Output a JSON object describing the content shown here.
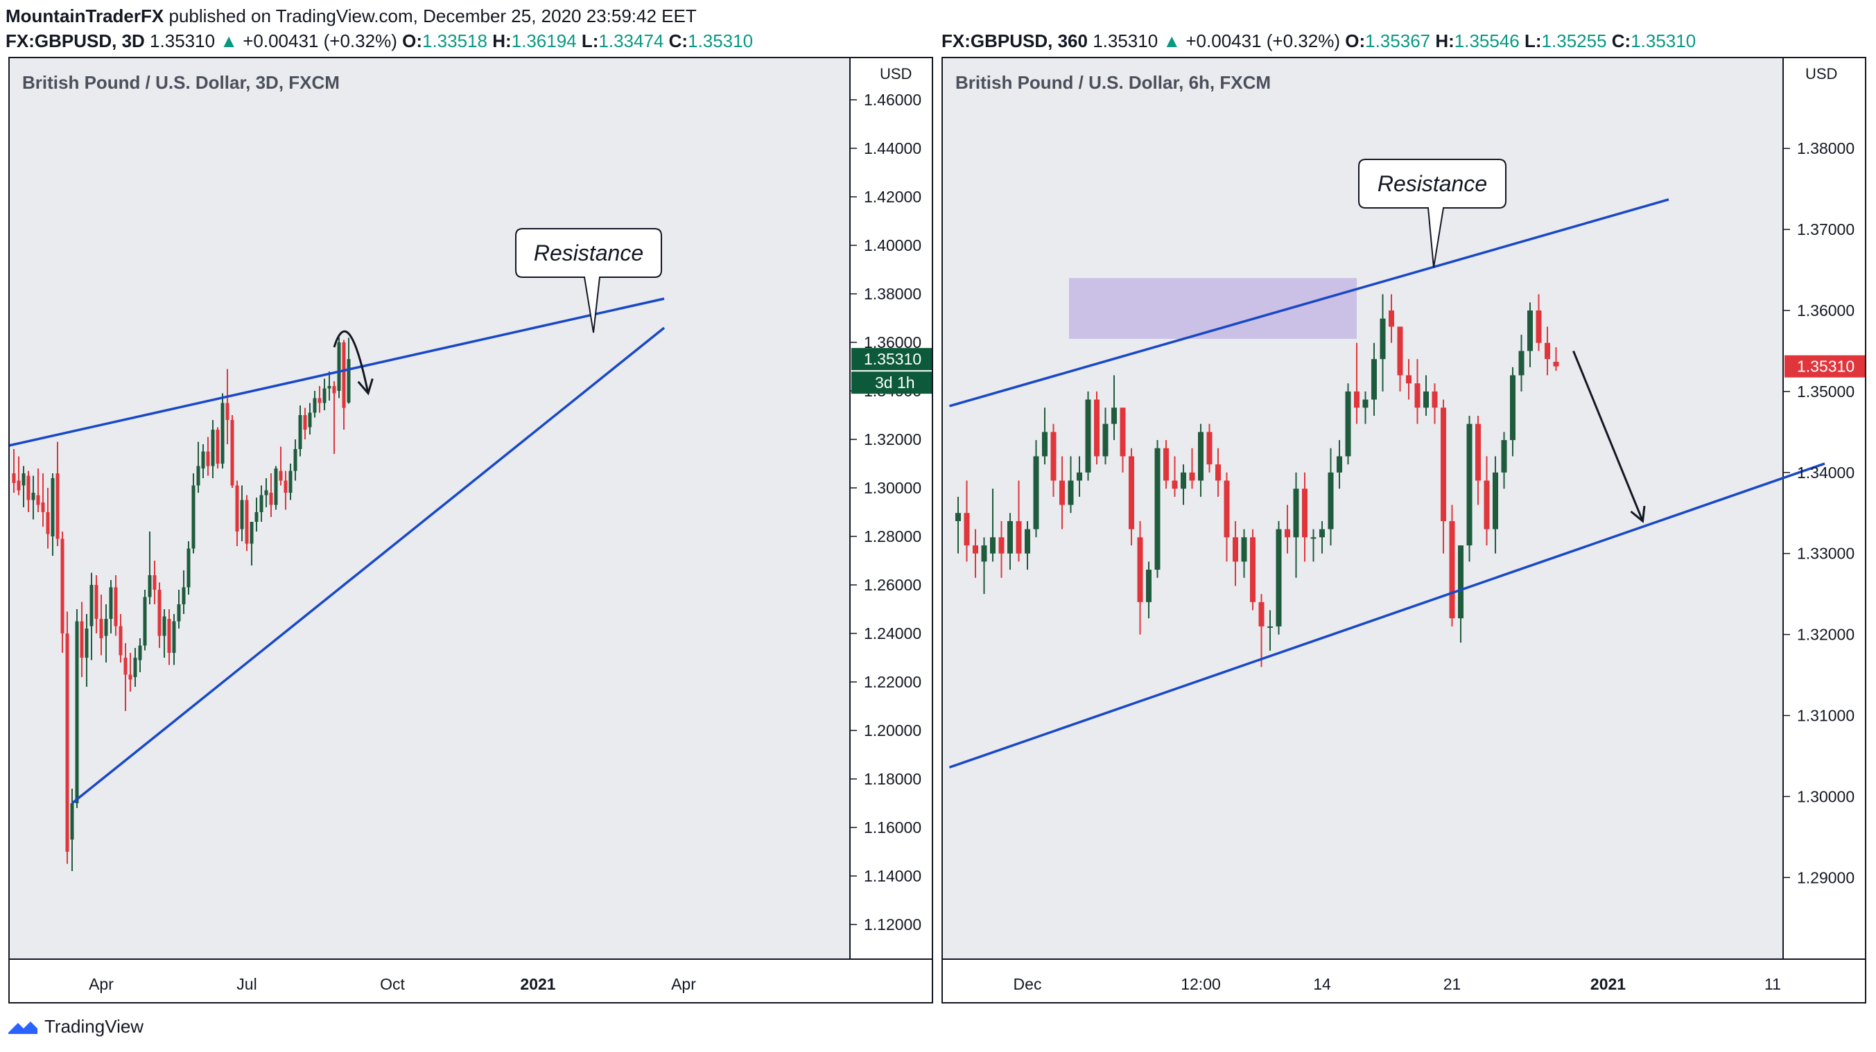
{
  "header": {
    "publisher": "MountainTraderFX",
    "published_text": "published on TradingView.com, December 25, 2020 23:59:42 EET"
  },
  "left_legend": {
    "symbol": "FX:GBPUSD, 3D",
    "price": "1.35310",
    "change": "+0.00431 (+0.32%)",
    "o_label": "O:",
    "o": "1.33518",
    "h_label": "H:",
    "h": "1.36194",
    "l_label": "L:",
    "l": "1.33474",
    "c_label": "C:",
    "c": "1.35310"
  },
  "right_legend": {
    "symbol": "FX:GBPUSD, 360",
    "price": "1.35310",
    "change": "+0.00431 (+0.32%)",
    "o_label": "O:",
    "o": "1.35367",
    "h_label": "H:",
    "h": "1.35546",
    "l_label": "L:",
    "l": "1.35255",
    "c_label": "C:",
    "c": "1.35310"
  },
  "footer": {
    "brand": "TradingView"
  },
  "colors": {
    "up": "#089981",
    "down": "#f23645",
    "bull_candle": "#1f5b3d",
    "bear_candle": "#e0353b",
    "trendline": "#1848c8",
    "zone": "#c5b8e4",
    "price_tag_left": "#0d5a3a",
    "price_tag_right": "#e0353b"
  },
  "chart_data": [
    {
      "type": "candlestick",
      "title": "British Pound / U.S. Dollar, 3D, FXCM",
      "currency": "USD",
      "y_ticks": [
        "1.46000",
        "1.44000",
        "1.42000",
        "1.40000",
        "1.38000",
        "1.36000",
        "1.34000",
        "1.32000",
        "1.30000",
        "1.28000",
        "1.26000",
        "1.24000",
        "1.22000",
        "1.20000",
        "1.18000",
        "1.16000",
        "1.14000",
        "1.12000"
      ],
      "ylim": [
        1.11,
        1.47
      ],
      "x_ticks": [
        "Apr",
        "Jul",
        "Oct",
        "2021",
        "Apr"
      ],
      "x_tick_index": [
        18,
        48,
        78,
        108,
        138
      ],
      "last_price": "1.35310",
      "countdown": "3d 1h",
      "annotation": "Resistance",
      "candles": [
        [
          1.306,
          1.316,
          1.298,
          1.302
        ],
        [
          1.303,
          1.313,
          1.297,
          1.299
        ],
        [
          1.301,
          1.309,
          1.292,
          1.306
        ],
        [
          1.305,
          1.307,
          1.29,
          1.295
        ],
        [
          1.295,
          1.305,
          1.287,
          1.298
        ],
        [
          1.297,
          1.308,
          1.29,
          1.293
        ],
        [
          1.294,
          1.306,
          1.284,
          1.29
        ],
        [
          1.29,
          1.3,
          1.275,
          1.281
        ],
        [
          1.28,
          1.306,
          1.272,
          1.304
        ],
        [
          1.306,
          1.319,
          1.276,
          1.279
        ],
        [
          1.279,
          1.282,
          1.232,
          1.24
        ],
        [
          1.24,
          1.249,
          1.145,
          1.15
        ],
        [
          1.155,
          1.176,
          1.142,
          1.17
        ],
        [
          1.17,
          1.25,
          1.168,
          1.245
        ],
        [
          1.245,
          1.253,
          1.222,
          1.23
        ],
        [
          1.23,
          1.248,
          1.218,
          1.242
        ],
        [
          1.243,
          1.265,
          1.229,
          1.26
        ],
        [
          1.26,
          1.264,
          1.24,
          1.246
        ],
        [
          1.246,
          1.256,
          1.231,
          1.238
        ],
        [
          1.239,
          1.252,
          1.228,
          1.246
        ],
        [
          1.246,
          1.262,
          1.24,
          1.259
        ],
        [
          1.259,
          1.264,
          1.239,
          1.243
        ],
        [
          1.243,
          1.248,
          1.228,
          1.231
        ],
        [
          1.23,
          1.236,
          1.208,
          1.223
        ],
        [
          1.223,
          1.232,
          1.216,
          1.221
        ],
        [
          1.222,
          1.234,
          1.218,
          1.23
        ],
        [
          1.229,
          1.238,
          1.224,
          1.235
        ],
        [
          1.235,
          1.258,
          1.233,
          1.255
        ],
        [
          1.255,
          1.282,
          1.252,
          1.264
        ],
        [
          1.264,
          1.27,
          1.252,
          1.258
        ],
        [
          1.258,
          1.261,
          1.234,
          1.239
        ],
        [
          1.239,
          1.25,
          1.23,
          1.247
        ],
        [
          1.246,
          1.25,
          1.227,
          1.232
        ],
        [
          1.232,
          1.248,
          1.227,
          1.245
        ],
        [
          1.245,
          1.258,
          1.242,
          1.252
        ],
        [
          1.252,
          1.266,
          1.248,
          1.259
        ],
        [
          1.259,
          1.278,
          1.256,
          1.275
        ],
        [
          1.275,
          1.306,
          1.273,
          1.301
        ],
        [
          1.301,
          1.319,
          1.298,
          1.309
        ],
        [
          1.308,
          1.318,
          1.304,
          1.315
        ],
        [
          1.315,
          1.321,
          1.305,
          1.309
        ],
        [
          1.309,
          1.328,
          1.304,
          1.324
        ],
        [
          1.324,
          1.325,
          1.308,
          1.31
        ],
        [
          1.31,
          1.339,
          1.308,
          1.335
        ],
        [
          1.335,
          1.349,
          1.318,
          1.328
        ],
        [
          1.328,
          1.33,
          1.3,
          1.301
        ],
        [
          1.301,
          1.303,
          1.276,
          1.282
        ],
        [
          1.283,
          1.301,
          1.278,
          1.295
        ],
        [
          1.295,
          1.297,
          1.274,
          1.277
        ],
        [
          1.277,
          1.285,
          1.268,
          1.286
        ],
        [
          1.286,
          1.296,
          1.282,
          1.29
        ],
        [
          1.29,
          1.301,
          1.286,
          1.297
        ],
        [
          1.297,
          1.304,
          1.292,
          1.299
        ],
        [
          1.298,
          1.306,
          1.288,
          1.293
        ],
        [
          1.293,
          1.309,
          1.291,
          1.308
        ],
        [
          1.307,
          1.317,
          1.301,
          1.303
        ],
        [
          1.303,
          1.307,
          1.291,
          1.298
        ],
        [
          1.298,
          1.31,
          1.295,
          1.307
        ],
        [
          1.307,
          1.32,
          1.303,
          1.316
        ],
        [
          1.316,
          1.334,
          1.313,
          1.33
        ],
        [
          1.33,
          1.333,
          1.32,
          1.324
        ],
        [
          1.325,
          1.335,
          1.322,
          1.331
        ],
        [
          1.331,
          1.34,
          1.329,
          1.337
        ],
        [
          1.337,
          1.342,
          1.331,
          1.335
        ],
        [
          1.335,
          1.345,
          1.332,
          1.341
        ],
        [
          1.341,
          1.348,
          1.336,
          1.342
        ],
        [
          1.342,
          1.344,
          1.314,
          1.339
        ],
        [
          1.34,
          1.362,
          1.337,
          1.36
        ],
        [
          1.36,
          1.361,
          1.324,
          1.333
        ],
        [
          1.3352,
          1.3619,
          1.3347,
          1.3531
        ]
      ],
      "trendlines": [
        {
          "name": "resistance",
          "from": [
            -2,
            1.317
          ],
          "to": [
            134,
            1.378
          ]
        },
        {
          "name": "support",
          "from": [
            12,
            1.17
          ],
          "to": [
            134,
            1.366
          ]
        }
      ],
      "arrow": {
        "from": [
          66,
          1.358
        ],
        "peak": [
          69,
          1.366
        ],
        "to": [
          73,
          1.339
        ]
      }
    },
    {
      "type": "candlestick",
      "title": "British Pound / U.S. Dollar, 6h, FXCM",
      "currency": "USD",
      "y_ticks": [
        "1.38000",
        "1.37000",
        "1.36000",
        "1.35000",
        "1.34000",
        "1.33000",
        "1.32000",
        "1.31000",
        "1.30000",
        "1.29000"
      ],
      "ylim": [
        1.2795,
        1.389
      ],
      "x_ticks": [
        "Dec",
        "12:00",
        "14",
        "21",
        "2021",
        "11"
      ],
      "x_tick_index": [
        8,
        28,
        42,
        57,
        75,
        94
      ],
      "last_price": "1.35310",
      "annotation": "Resistance",
      "resistance_zone": [
        1.3565,
        1.364
      ],
      "candles": [
        [
          1.334,
          1.337,
          1.33,
          1.335
        ],
        [
          1.335,
          1.339,
          1.329,
          1.331
        ],
        [
          1.331,
          1.333,
          1.327,
          1.33
        ],
        [
          1.329,
          1.332,
          1.325,
          1.331
        ],
        [
          1.33,
          1.338,
          1.329,
          1.332
        ],
        [
          1.332,
          1.334,
          1.327,
          1.33
        ],
        [
          1.33,
          1.335,
          1.328,
          1.334
        ],
        [
          1.334,
          1.339,
          1.329,
          1.33
        ],
        [
          1.33,
          1.334,
          1.328,
          1.333
        ],
        [
          1.333,
          1.344,
          1.332,
          1.342
        ],
        [
          1.342,
          1.348,
          1.341,
          1.345
        ],
        [
          1.345,
          1.346,
          1.337,
          1.339
        ],
        [
          1.339,
          1.342,
          1.333,
          1.336
        ],
        [
          1.336,
          1.342,
          1.335,
          1.339
        ],
        [
          1.339,
          1.342,
          1.337,
          1.34
        ],
        [
          1.34,
          1.35,
          1.339,
          1.349
        ],
        [
          1.349,
          1.35,
          1.341,
          1.342
        ],
        [
          1.342,
          1.348,
          1.341,
          1.346
        ],
        [
          1.346,
          1.352,
          1.344,
          1.348
        ],
        [
          1.348,
          1.348,
          1.34,
          1.342
        ],
        [
          1.342,
          1.343,
          1.331,
          1.333
        ],
        [
          1.332,
          1.334,
          1.32,
          1.324
        ],
        [
          1.324,
          1.329,
          1.322,
          1.328
        ],
        [
          1.328,
          1.344,
          1.327,
          1.343
        ],
        [
          1.343,
          1.344,
          1.338,
          1.339
        ],
        [
          1.339,
          1.342,
          1.337,
          1.338
        ],
        [
          1.338,
          1.341,
          1.336,
          1.34
        ],
        [
          1.34,
          1.343,
          1.338,
          1.339
        ],
        [
          1.339,
          1.346,
          1.337,
          1.345
        ],
        [
          1.345,
          1.346,
          1.34,
          1.341
        ],
        [
          1.341,
          1.343,
          1.337,
          1.339
        ],
        [
          1.339,
          1.34,
          1.329,
          1.332
        ],
        [
          1.332,
          1.334,
          1.326,
          1.329
        ],
        [
          1.329,
          1.333,
          1.327,
          1.332
        ],
        [
          1.332,
          1.333,
          1.323,
          1.324
        ],
        [
          1.324,
          1.325,
          1.316,
          1.321
        ],
        [
          1.321,
          1.323,
          1.318,
          1.321
        ],
        [
          1.321,
          1.334,
          1.32,
          1.333
        ],
        [
          1.333,
          1.336,
          1.33,
          1.332
        ],
        [
          1.332,
          1.34,
          1.327,
          1.338
        ],
        [
          1.338,
          1.34,
          1.329,
          1.332
        ],
        [
          1.332,
          1.333,
          1.329,
          1.332
        ],
        [
          1.332,
          1.334,
          1.33,
          1.333
        ],
        [
          1.333,
          1.343,
          1.331,
          1.34
        ],
        [
          1.34,
          1.344,
          1.338,
          1.342
        ],
        [
          1.342,
          1.351,
          1.341,
          1.35
        ],
        [
          1.35,
          1.356,
          1.346,
          1.348
        ],
        [
          1.348,
          1.35,
          1.346,
          1.349
        ],
        [
          1.349,
          1.356,
          1.347,
          1.354
        ],
        [
          1.354,
          1.362,
          1.35,
          1.359
        ],
        [
          1.36,
          1.362,
          1.356,
          1.358
        ],
        [
          1.358,
          1.358,
          1.35,
          1.352
        ],
        [
          1.352,
          1.354,
          1.349,
          1.351
        ],
        [
          1.351,
          1.354,
          1.346,
          1.348
        ],
        [
          1.348,
          1.352,
          1.347,
          1.35
        ],
        [
          1.35,
          1.351,
          1.346,
          1.348
        ],
        [
          1.348,
          1.349,
          1.33,
          1.334
        ],
        [
          1.334,
          1.336,
          1.321,
          1.322
        ],
        [
          1.322,
          1.331,
          1.319,
          1.331
        ],
        [
          1.331,
          1.347,
          1.329,
          1.346
        ],
        [
          1.346,
          1.347,
          1.336,
          1.339
        ],
        [
          1.339,
          1.342,
          1.331,
          1.333
        ],
        [
          1.333,
          1.342,
          1.33,
          1.34
        ],
        [
          1.34,
          1.345,
          1.338,
          1.344
        ],
        [
          1.344,
          1.353,
          1.342,
          1.352
        ],
        [
          1.352,
          1.357,
          1.35,
          1.355
        ],
        [
          1.355,
          1.361,
          1.353,
          1.36
        ],
        [
          1.36,
          1.362,
          1.355,
          1.356
        ],
        [
          1.356,
          1.358,
          1.352,
          1.354
        ],
        [
          1.35367,
          1.35546,
          1.35255,
          1.3531
        ]
      ],
      "trendlines": [
        {
          "name": "resistance",
          "from": [
            -1,
            1.3482
          ],
          "to": [
            82,
            1.3737
          ]
        },
        {
          "name": "support",
          "from": [
            -1,
            1.3036
          ],
          "to": [
            100,
            1.3411
          ]
        }
      ],
      "arrow": {
        "from": [
          71,
          1.355
        ],
        "to": [
          79,
          1.334
        ]
      }
    }
  ]
}
